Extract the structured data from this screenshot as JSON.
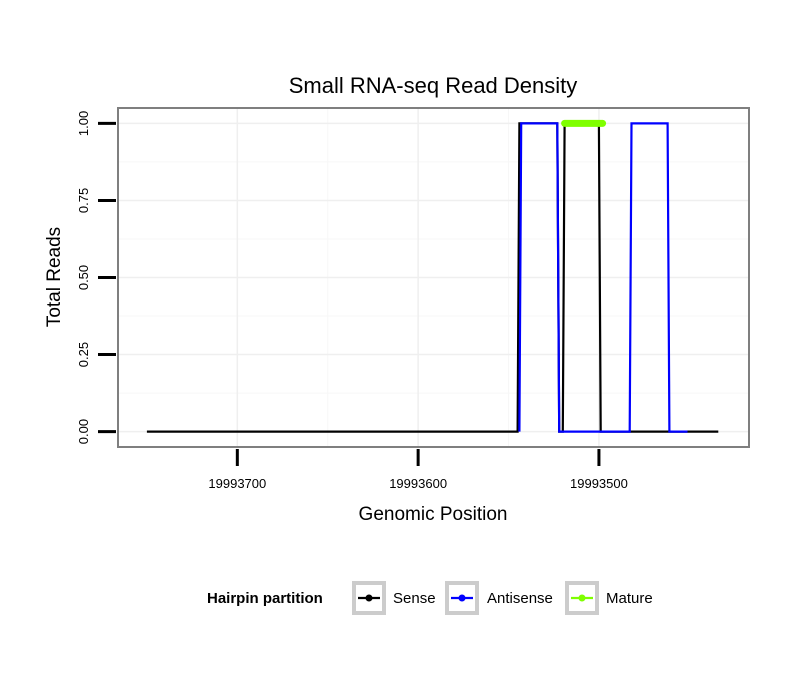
{
  "chart_data": {
    "type": "line",
    "title": "Small RNA-seq Read Density",
    "xlabel": "Genomic Position",
    "ylabel": "Total Reads",
    "x_reversed": true,
    "xlim": [
      19993766,
      19993417
    ],
    "ylim": [
      -0.05,
      1.05
    ],
    "x_ticks": [
      19993700,
      19993600,
      19993500
    ],
    "x_tick_labels": [
      "19993700",
      "19993600",
      "19993500"
    ],
    "y_ticks": [
      0,
      0.25,
      0.5,
      0.75,
      1
    ],
    "y_tick_labels": [
      "0.00",
      "0.25",
      "0.50",
      "0.75",
      "1.00"
    ],
    "grid": true,
    "legend": {
      "title": "Hairpin partition",
      "position": "bottom",
      "entries": [
        "Sense",
        "Antisense",
        "Mature"
      ]
    },
    "series": [
      {
        "name": "Sense",
        "color": "#000000",
        "points": [
          [
            19993750,
            0
          ],
          [
            19993545,
            0
          ],
          [
            19993544,
            1
          ],
          [
            19993523,
            1
          ],
          [
            19993522,
            0
          ],
          [
            19993520,
            0
          ],
          [
            19993519,
            1
          ],
          [
            19993500,
            1
          ],
          [
            19993499,
            0
          ],
          [
            19993434,
            0
          ]
        ]
      },
      {
        "name": "Antisense",
        "color": "#0000ff",
        "points": [
          [
            19993544,
            0
          ],
          [
            19993543,
            1
          ],
          [
            19993523,
            1
          ],
          [
            19993522,
            0
          ],
          [
            19993483,
            0
          ],
          [
            19993482,
            1
          ],
          [
            19993462,
            1
          ],
          [
            19993461,
            0
          ],
          [
            19993451,
            0
          ]
        ]
      },
      {
        "name": "Mature",
        "color": "#7fff00",
        "points": [
          [
            19993519,
            1
          ],
          [
            19993498,
            1
          ]
        ]
      }
    ]
  }
}
